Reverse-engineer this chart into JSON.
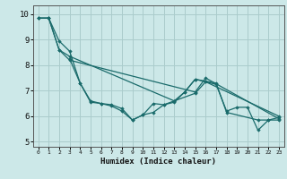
{
  "title": "",
  "xlabel": "Humidex (Indice chaleur)",
  "xlim": [
    -0.5,
    23.5
  ],
  "ylim": [
    4.8,
    10.35
  ],
  "yticks": [
    5,
    6,
    7,
    8,
    9,
    10
  ],
  "xticks": [
    0,
    1,
    2,
    3,
    4,
    5,
    6,
    7,
    8,
    9,
    10,
    11,
    12,
    13,
    14,
    15,
    16,
    17,
    18,
    19,
    20,
    21,
    22,
    23
  ],
  "bg_color": "#cce8e8",
  "grid_color": "#aacccc",
  "line_color": "#1a6b6b",
  "series": [
    [
      9.85,
      9.85,
      8.95,
      8.55,
      7.3,
      6.55,
      6.5,
      6.4,
      6.2,
      5.85,
      6.05,
      6.15,
      6.45,
      6.6,
      6.95,
      7.45,
      7.35,
      7.25,
      6.2,
      6.35,
      6.35,
      5.45,
      5.85,
      5.95
    ],
    [
      9.85,
      9.85,
      8.6,
      8.35,
      null,
      null,
      null,
      null,
      null,
      null,
      null,
      null,
      null,
      6.6,
      null,
      6.9,
      7.35,
      null,
      null,
      null,
      null,
      null,
      null,
      6.0
    ],
    [
      9.85,
      9.85,
      8.6,
      8.2,
      null,
      null,
      null,
      null,
      null,
      null,
      null,
      null,
      null,
      null,
      null,
      6.95,
      7.5,
      null,
      null,
      null,
      null,
      null,
      null,
      5.9
    ],
    [
      null,
      null,
      null,
      8.25,
      7.3,
      6.6,
      6.5,
      6.45,
      6.3,
      5.85,
      6.05,
      6.5,
      6.45,
      6.55,
      6.95,
      7.45,
      null,
      7.3,
      6.15,
      null,
      null,
      5.85,
      5.85,
      5.85
    ]
  ]
}
